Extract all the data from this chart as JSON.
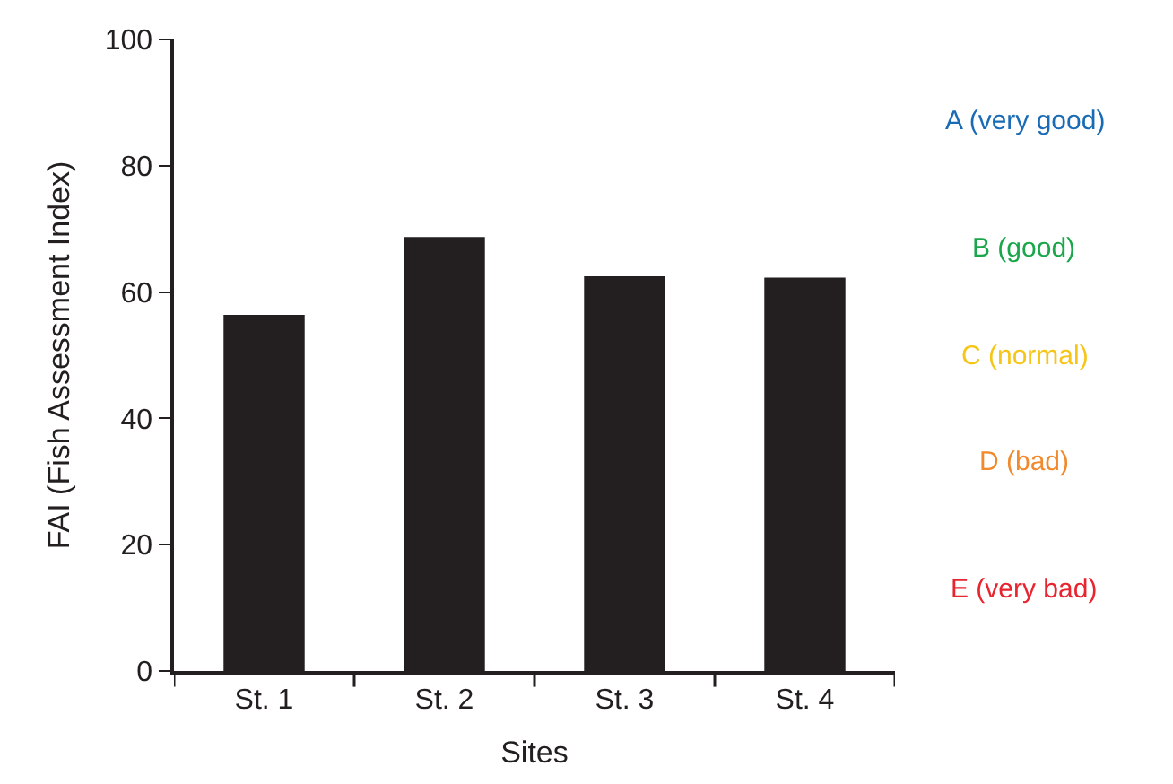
{
  "chart_data": {
    "type": "bar",
    "xlabel": "Sites",
    "ylabel": "FAI (Fish Assessment Index)",
    "categories": [
      "St. 1",
      "St. 2",
      "St. 3",
      "St. 4"
    ],
    "values": [
      56.4,
      68.7,
      62.5,
      62.3
    ],
    "color": "#231f20",
    "ylim": [
      0,
      100
    ],
    "yticks": [
      0,
      20,
      40,
      60,
      80,
      100
    ],
    "legend": false,
    "annotations": [
      "A (very good)",
      "B (good)",
      "C (normal)",
      "D (bad)",
      "E (very bad)"
    ]
  }
}
